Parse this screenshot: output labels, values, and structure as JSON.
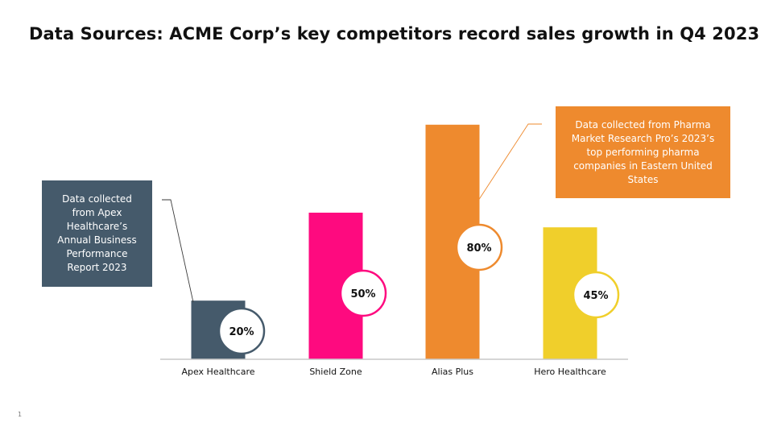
{
  "slide": {
    "title": "Data Sources: ACME Corp’s key competitors record sales growth in Q4 2023",
    "page_number": "1"
  },
  "callouts": [
    {
      "text": "Data collected from Apex Healthcare’s Annual Business Performance Report 2023",
      "color": "#455a6b"
    },
    {
      "text": "Data collected from Pharma Market Research Pro’s 2023’s top performing pharma companies in Eastern United States",
      "color": "#ee8a2e"
    }
  ],
  "chart_data": {
    "type": "bar",
    "categories": [
      "Apex Healthcare",
      "Shield Zone",
      "Alias Plus",
      "Hero Healthcare"
    ],
    "values": [
      20,
      50,
      80,
      45
    ],
    "data_labels": [
      "20%",
      "50%",
      "80%",
      "45%"
    ],
    "colors": [
      "#455a6b",
      "#fe0a7f",
      "#ee8a2e",
      "#f0cf2b"
    ],
    "ylim": [
      0,
      100
    ],
    "grid": false,
    "legend": "none",
    "title": "",
    "xlabel": "",
    "ylabel": ""
  }
}
